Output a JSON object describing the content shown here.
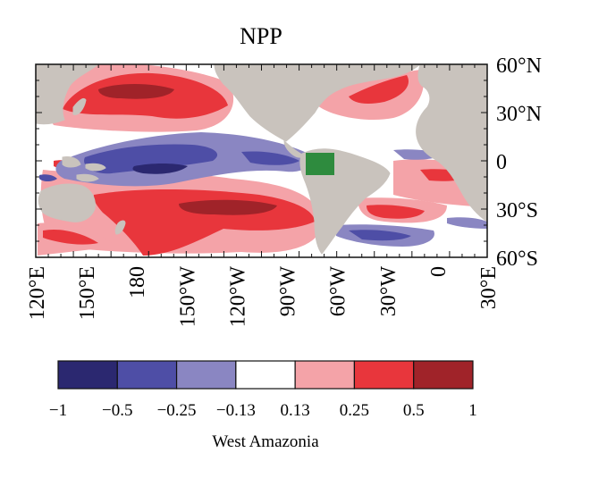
{
  "map": {
    "title": "NPP",
    "lat_labels": [
      "60°N",
      "30°N",
      "0",
      "30°S",
      "60°S"
    ],
    "lon_labels": [
      "120°E",
      "150°E",
      "180",
      "150°W",
      "120°W",
      "90°W",
      "60°W",
      "30°W",
      "0",
      "30°E"
    ],
    "highlight_box_color": "#2e8b3e",
    "land_color": "#c9c3bd"
  },
  "colorbar": {
    "label": "West Amazonia",
    "tick_labels": [
      "−1",
      "−0.5",
      "−0.25",
      "−0.13",
      "0.13",
      "0.25",
      "0.5",
      "1"
    ],
    "colors": [
      "#2b2870",
      "#4e4ea6",
      "#8a86c2",
      "#ffffff",
      "#f4a3a8",
      "#e8363c",
      "#a02329"
    ]
  }
}
